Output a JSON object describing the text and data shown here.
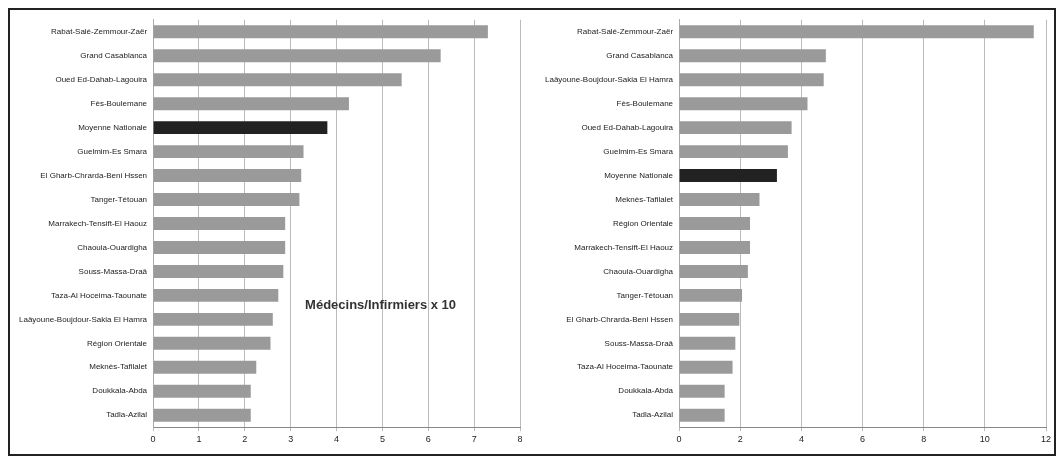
{
  "chart_data": [
    {
      "type": "bar",
      "orientation": "horizontal",
      "categories": [
        "Rabat-Salé-Zemmour-Zaër",
        "Grand Casablanca",
        "Oued Ed-Dahab-Lagouira",
        "Fès-Boulemane",
        "Moyenne Nationale",
        "Guelmim-Es Smara",
        "El Gharb-Chrarda-Beni Hssen",
        "Tanger-Tétouan",
        "Marrakech-Tensift-El Haouz",
        "Chaouia-Ouardigha",
        "Souss-Massa-Draâ",
        "Taza-Al Hoceima-Taounate",
        "Laâyoune-Boujdour-Sakia El Hamra",
        "Région Orientale",
        "Meknès-Tafilalet",
        "Doukkala-Abda",
        "Tadla-Azilal"
      ],
      "values": [
        7.3,
        6.27,
        5.42,
        4.27,
        3.8,
        3.28,
        3.23,
        3.19,
        2.88,
        2.88,
        2.84,
        2.73,
        2.61,
        2.56,
        2.25,
        2.13,
        2.13
      ],
      "colors": [
        "#9a9a9a",
        "#9a9a9a",
        "#9a9a9a",
        "#9a9a9a",
        "#222222",
        "#9a9a9a",
        "#9a9a9a",
        "#9a9a9a",
        "#9a9a9a",
        "#9a9a9a",
        "#9a9a9a",
        "#9a9a9a",
        "#9a9a9a",
        "#9a9a9a",
        "#9a9a9a",
        "#9a9a9a",
        "#9a9a9a"
      ],
      "xlim": [
        0,
        8
      ],
      "xticks": [
        0,
        1,
        2,
        3,
        4,
        5,
        6,
        7,
        8
      ],
      "grid": "x",
      "annotations": [
        "Médecins/Infirmiers x 10"
      ]
    },
    {
      "type": "bar",
      "orientation": "horizontal",
      "categories": [
        "Rabat-Salé-Zemmour-Zaër",
        "Grand Casablanca",
        "Laâyoune-Boujdour-Sakia El Hamra",
        "Fès-Boulemane",
        "Oued Ed-Dahab-Lagouira",
        "Guelmim-Es Smara",
        "Moyenne Nationale",
        "Meknès-Tafilalet",
        "Région Orientale",
        "Marrakech-Tensift-El Haouz",
        "Chaouia-Ouardigha",
        "Tanger-Tétouan",
        "El Gharb-Chrarda-Beni Hssen",
        "Souss-Massa-Draâ",
        "Taza-Al Hoceima-Taounate",
        "Doukkala-Abda",
        "Tadla-Azilal"
      ],
      "values": [
        11.6,
        4.8,
        4.73,
        4.2,
        3.68,
        3.56,
        3.2,
        2.63,
        2.32,
        2.32,
        2.25,
        2.06,
        1.97,
        1.84,
        1.75,
        1.49,
        1.49
      ],
      "colors": [
        "#9a9a9a",
        "#9a9a9a",
        "#9a9a9a",
        "#9a9a9a",
        "#9a9a9a",
        "#9a9a9a",
        "#222222",
        "#9a9a9a",
        "#9a9a9a",
        "#9a9a9a",
        "#9a9a9a",
        "#9a9a9a",
        "#9a9a9a",
        "#9a9a9a",
        "#9a9a9a",
        "#9a9a9a",
        "#9a9a9a"
      ],
      "xlim": [
        0,
        12
      ],
      "xticks": [
        0,
        2,
        4,
        6,
        8,
        10,
        12
      ],
      "grid": "x"
    }
  ]
}
